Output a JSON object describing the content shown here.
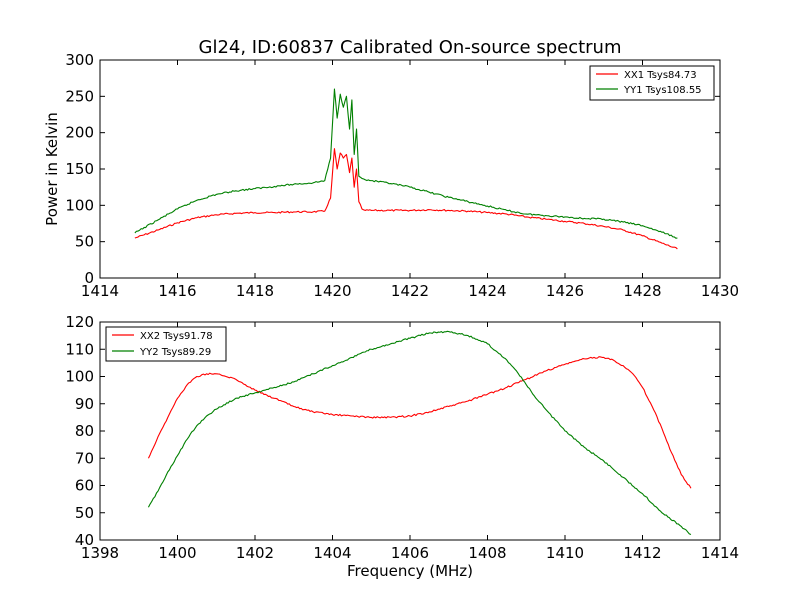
{
  "figure": {
    "title": "Gl24, ID:60837 Calibrated On-source spectrum"
  },
  "chart_data": [
    {
      "type": "line",
      "title": "Gl24, ID:60837 Calibrated On-source spectrum",
      "xlabel": "",
      "ylabel": "Power in Kelvin",
      "xlim": [
        1414,
        1430
      ],
      "ylim": [
        0,
        300
      ],
      "xticks": [
        1414,
        1416,
        1418,
        1420,
        1422,
        1424,
        1426,
        1428,
        1430
      ],
      "yticks": [
        0,
        50,
        100,
        150,
        200,
        250,
        300
      ],
      "grid": false,
      "legend_position": "top-right",
      "series": [
        {
          "name": "XX1 Tsys84.73",
          "color": "#ff0000",
          "x": [
            1414.9,
            1415.5,
            1416.0,
            1416.5,
            1417.0,
            1417.5,
            1418.0,
            1418.5,
            1419.0,
            1419.5,
            1419.8,
            1419.95,
            1420.05,
            1420.12,
            1420.2,
            1420.28,
            1420.36,
            1420.44,
            1420.5,
            1420.56,
            1420.62,
            1420.68,
            1420.76,
            1420.85,
            1421.0,
            1421.5,
            1422.0,
            1422.5,
            1423.0,
            1423.5,
            1424.0,
            1424.5,
            1425.0,
            1425.5,
            1426.0,
            1426.5,
            1427.0,
            1427.5,
            1428.0,
            1428.5,
            1428.9
          ],
          "y": [
            55,
            66,
            76,
            83,
            87,
            89,
            90,
            90,
            91,
            91,
            92,
            110,
            178,
            150,
            172,
            165,
            170,
            145,
            165,
            125,
            150,
            105,
            95,
            93,
            93,
            93,
            93,
            94,
            93,
            92,
            90,
            88,
            84,
            81,
            78,
            75,
            71,
            66,
            58,
            48,
            40
          ]
        },
        {
          "name": "YY1 Tsys108.55",
          "color": "#008000",
          "x": [
            1414.9,
            1415.5,
            1416.0,
            1416.5,
            1417.0,
            1417.5,
            1418.0,
            1418.5,
            1419.0,
            1419.5,
            1419.8,
            1419.95,
            1420.05,
            1420.12,
            1420.2,
            1420.28,
            1420.36,
            1420.44,
            1420.5,
            1420.56,
            1420.62,
            1420.68,
            1420.76,
            1420.85,
            1421.0,
            1421.5,
            1422.0,
            1422.5,
            1423.0,
            1423.5,
            1424.0,
            1424.5,
            1425.0,
            1425.5,
            1426.0,
            1426.5,
            1427.0,
            1427.5,
            1428.0,
            1428.5,
            1428.9
          ],
          "y": [
            62,
            80,
            95,
            107,
            115,
            120,
            123,
            126,
            129,
            131,
            134,
            165,
            260,
            220,
            253,
            235,
            250,
            205,
            245,
            170,
            205,
            140,
            137,
            135,
            134,
            130,
            125,
            118,
            111,
            105,
            99,
            93,
            88,
            86,
            84,
            82,
            81,
            77,
            72,
            63,
            55
          ]
        }
      ]
    },
    {
      "type": "line",
      "title": "",
      "xlabel": "Frequency (MHz)",
      "ylabel": "",
      "xlim": [
        1398,
        1414
      ],
      "ylim": [
        40,
        120
      ],
      "xticks": [
        1398,
        1400,
        1402,
        1404,
        1406,
        1408,
        1410,
        1412,
        1414
      ],
      "yticks": [
        40,
        50,
        60,
        70,
        80,
        90,
        100,
        110,
        120
      ],
      "grid": false,
      "legend_position": "top-left",
      "series": [
        {
          "name": "XX2 Tsys91.78",
          "color": "#ff0000",
          "x": [
            1399.25,
            1399.5,
            1399.75,
            1400.0,
            1400.25,
            1400.5,
            1400.75,
            1401.0,
            1401.25,
            1401.5,
            1401.75,
            1402.0,
            1402.5,
            1403.0,
            1403.5,
            1404.0,
            1404.5,
            1405.0,
            1405.5,
            1406.0,
            1406.5,
            1407.0,
            1407.5,
            1408.0,
            1408.5,
            1409.0,
            1409.5,
            1410.0,
            1410.5,
            1410.75,
            1411.0,
            1411.25,
            1411.5,
            1411.75,
            1412.0,
            1412.25,
            1412.5,
            1412.75,
            1413.0,
            1413.25
          ],
          "y": [
            70,
            78,
            85,
            92,
            97,
            100,
            101,
            101,
            100,
            99,
            97,
            95,
            92,
            89,
            87,
            86,
            85.5,
            85,
            85,
            85.5,
            87,
            89,
            91,
            93.5,
            96,
            99,
            102,
            104.5,
            106.5,
            107,
            107,
            106,
            104,
            101,
            96,
            89,
            81,
            72,
            64,
            59
          ]
        },
        {
          "name": "YY2 Tsys89.29",
          "color": "#008000",
          "x": [
            1399.25,
            1399.5,
            1399.75,
            1400.0,
            1400.25,
            1400.5,
            1400.75,
            1401.0,
            1401.5,
            1402.0,
            1402.5,
            1403.0,
            1403.5,
            1404.0,
            1404.5,
            1405.0,
            1405.5,
            1406.0,
            1406.5,
            1407.0,
            1407.5,
            1408.0,
            1408.25,
            1408.5,
            1408.75,
            1409.0,
            1409.25,
            1409.5,
            1409.75,
            1410.0,
            1410.5,
            1411.0,
            1411.5,
            1412.0,
            1412.5,
            1413.0,
            1413.25
          ],
          "y": [
            52,
            58,
            65,
            71,
            77,
            82,
            85.5,
            88,
            92,
            94,
            96,
            98,
            101,
            104,
            107,
            110,
            112,
            114,
            116,
            116.5,
            115,
            112,
            109,
            106,
            102,
            97,
            92,
            88,
            84,
            80,
            74,
            69,
            63,
            57,
            50,
            45,
            42
          ]
        }
      ]
    }
  ]
}
